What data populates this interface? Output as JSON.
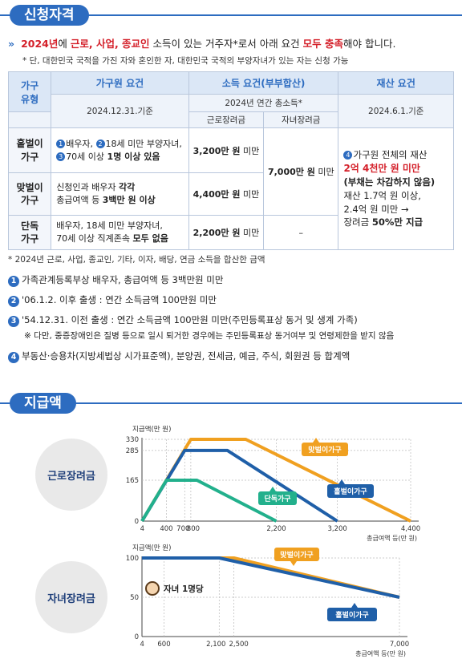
{
  "section1": {
    "title": "신청자격"
  },
  "intro": {
    "line_parts": [
      {
        "t": "2024년",
        "red": true
      },
      {
        "t": "에 ",
        "red": false
      },
      {
        "t": "근로, 사업, 종교인",
        "red": true
      },
      {
        "t": " 소득이 있는 거주자*로서 아래 요건 ",
        "red": false
      },
      {
        "t": "모두 충족",
        "red": true
      },
      {
        "t": "해야 합니다.",
        "red": false
      }
    ],
    "sub": "* 단, 대한민국 국적을 가진 자와 혼인한 자, 대한민국 국적의 부양자녀가 있는 자는 신청 가능"
  },
  "table": {
    "h_type": "가구\n유형",
    "h_family": "가구원 요건",
    "h_income": "소득 요건(부부합산)",
    "h_asset": "재산 요건",
    "d_family": "2024.12.31.기준",
    "d_income": "2024년 연간 총소득*",
    "d_asset": "2024.6.1.기준",
    "col_work": "근로장려금",
    "col_child": "자녀장려금",
    "rows": [
      {
        "type": "홑벌이\n가구",
        "work": "3,200만 원",
        "unit": " 미만"
      },
      {
        "type": "맞벌이\n가구",
        "work": "4,400만 원",
        "unit": " 미만"
      },
      {
        "type": "단독\n가구",
        "work": "2,200만 원",
        "unit": " 미만",
        "child": "–"
      }
    ],
    "r1_n1": "1",
    "r1_a": "배우자, ",
    "r1_n2": "2",
    "r1_b": "18세 미만 부양자녀,",
    "r1_n3": "3",
    "r1_c": "70세 이상 ",
    "r1_d": "1명 이상 있음",
    "r2_a": "신청인과 배우자 ",
    "r2_b": "각각",
    "r2_c": "총급여액 등 ",
    "r2_d": "3백만 원 이상",
    "r3_a": "배우자, 18세 미만 부양자녀,",
    "r3_b": "70세 이상 직계존속 ",
    "r3_c": "모두 없음",
    "child_all": "7,000만 원",
    "child_unit": " 미만",
    "asset_n": "4",
    "asset_a": "가구원 전체의 재산",
    "asset_b": "2억 4천만 원 미만",
    "asset_c": "(부채는 차감하지 않음)",
    "asset_d": "재산 1.7억 원 이상,",
    "asset_e": "2.4억 원 미만 →",
    "asset_f": "장려금 ",
    "asset_g": "50%만 지급"
  },
  "footnote": "* 2024년 근로, 사업, 종교인, 기타, 이자, 배당, 연금 소득을 합산한 금액",
  "notes": [
    {
      "n": "1",
      "t": "가족관계등록부상 배우자, 총급여액 등 3백만원 미만"
    },
    {
      "n": "2",
      "t": "'06.1.2. 이후 출생 : 연간 소득금액 100만원 미만"
    },
    {
      "n": "3",
      "t": "'54.12.31. 이전 출생 : 연간 소득금액 100만원 미만(주민등록표상 동거 및 생계 가족)"
    },
    {
      "n": "",
      "t": "※ 다만, 중증장애인은 질병 등으로 일시 퇴거한 경우에는 주민등록표상 동거여부 및 연령제한을 받지 않음"
    },
    {
      "n": "4",
      "t": "부동산·승용차(지방세법상 시가표준액), 분양권, 전세금, 예금, 주식, 회원권 등 합계액"
    }
  ],
  "section2": {
    "title": "지급액"
  },
  "colors": {
    "blue": "#2d6cc0",
    "navy": "#1f5fa8",
    "orange": "#f0a020",
    "green": "#22b08c",
    "red": "#d4202a"
  },
  "chart_data": [
    {
      "type": "line",
      "title": "근로장려금",
      "ylabel": "지급액(만 원)",
      "xlabel": "총급여액 등(만 원)",
      "x_ticks": [
        "4",
        "400",
        "700",
        "800",
        "2,200",
        "3,200",
        "4,400"
      ],
      "y_ticks": [
        "330",
        "285",
        "165",
        "0"
      ],
      "series": [
        {
          "name": "맞벌이가구",
          "color": "#f0a020",
          "points": [
            [
              0,
              0
            ],
            [
              800,
              330
            ],
            [
              1700,
              330
            ],
            [
              4400,
              0
            ]
          ]
        },
        {
          "name": "홑벌이가구",
          "color": "#1f5fa8",
          "points": [
            [
              0,
              0
            ],
            [
              700,
              285
            ],
            [
              1400,
              285
            ],
            [
              3200,
              0
            ]
          ]
        },
        {
          "name": "단독가구",
          "color": "#22b08c",
          "points": [
            [
              0,
              0
            ],
            [
              400,
              165
            ],
            [
              900,
              165
            ],
            [
              2200,
              0
            ]
          ]
        }
      ]
    },
    {
      "type": "line",
      "title": "자녀장려금",
      "ylabel": "지급액(만 원)",
      "xlabel": "총급여액 등(만 원)",
      "annotation": "자녀 1명당",
      "x_ticks": [
        "4",
        "600",
        "2,100",
        "2,500",
        "7,000"
      ],
      "y_ticks": [
        "100",
        "50",
        "0"
      ],
      "series": [
        {
          "name": "맞벌이가구",
          "color": "#f0a020",
          "points": [
            [
              0,
              100
            ],
            [
              2500,
              100
            ],
            [
              7000,
              50
            ]
          ]
        },
        {
          "name": "홑벌이가구",
          "color": "#1f5fa8",
          "points": [
            [
              0,
              100
            ],
            [
              2100,
              100
            ],
            [
              7000,
              50
            ]
          ]
        }
      ]
    }
  ]
}
